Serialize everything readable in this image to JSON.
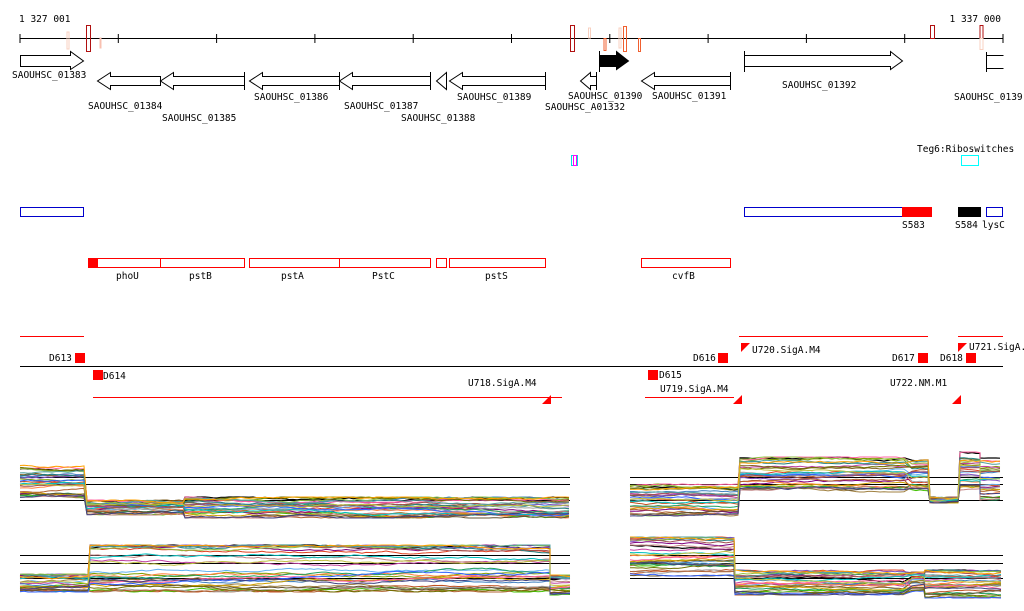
{
  "ruler": {
    "start_label": "1 327 001",
    "end_label": "1 337 000"
  },
  "genes": [
    {
      "name": "SAOUHSC_01383",
      "strand": "+"
    },
    {
      "name": "SAOUHSC_01384",
      "strand": "-"
    },
    {
      "name": "SAOUHSC_01385",
      "strand": "-"
    },
    {
      "name": "SAOUHSC_01386",
      "strand": "-"
    },
    {
      "name": "SAOUHSC_01387",
      "strand": "-"
    },
    {
      "name": "SAOUHSC_01388",
      "strand": "-"
    },
    {
      "name": "SAOUHSC_01389",
      "strand": "-"
    },
    {
      "name": "SAOUHSC_A01332",
      "strand": "-"
    },
    {
      "name": "SAOUHSC_01390",
      "strand": "+",
      "highlighted": true
    },
    {
      "name": "SAOUHSC_01391",
      "strand": "-"
    },
    {
      "name": "SAOUHSC_01392",
      "strand": "+"
    },
    {
      "name": "SAOUHSC_0139",
      "strand": "+"
    }
  ],
  "riboswitch_track": {
    "label": "Teg6:Riboswitches",
    "color": "#00ffff"
  },
  "srna_track": {
    "labels": [
      "S583",
      "S584",
      "lysC"
    ]
  },
  "operons": [
    "phoU",
    "pstB",
    "pstA",
    "PstC",
    "pstS",
    "cvfB"
  ],
  "transcripts": {
    "labels": [
      "D613",
      "D614",
      "U718.SigA.M4",
      "D615",
      "U719.SigA.M4",
      "D616",
      "U720.SigA.M4",
      "D617",
      "D618",
      "U721.SigA.",
      "U722.NM.M1"
    ],
    "color": "#ff0000"
  },
  "expression": {
    "series_colors": [
      "#000000",
      "#e04020",
      "#c05020",
      "#80a000",
      "#40c000",
      "#60b0f0",
      "#a08040",
      "#c040a0",
      "#800080",
      "#ff8040",
      "#4080c0",
      "#a0a0a0",
      "#806020",
      "#20a060",
      "#d0a000",
      "#8050c0",
      "#ff60a0",
      "#208080",
      "#b06030",
      "#605030",
      "#90c040",
      "#3060ff",
      "#c08080",
      "#707000",
      "#00c0c0",
      "#a05050",
      "#50a0a0",
      "#ffa000",
      "#404080",
      "#c0c040"
    ]
  }
}
